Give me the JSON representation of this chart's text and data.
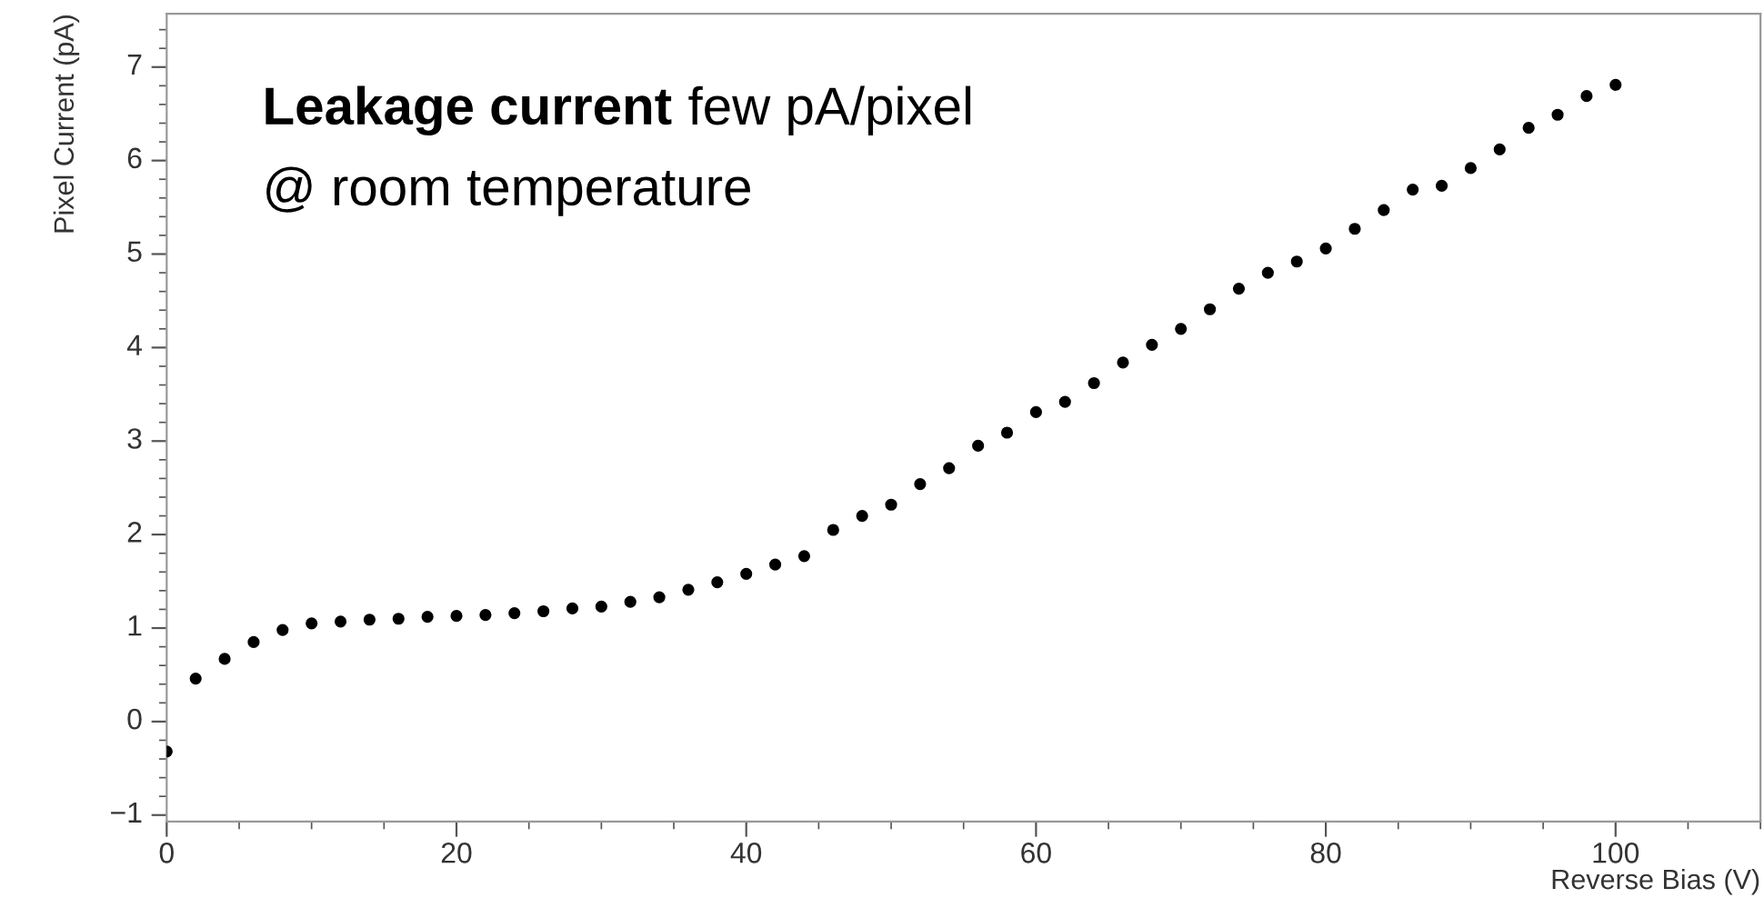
{
  "chart_data": {
    "type": "scatter",
    "xlabel": "Reverse Bias (V)",
    "ylabel": "Pixel Current (pA)",
    "annotations": [
      "Leakage current",
      "few pA/pixel",
      "@ room temperature"
    ],
    "x": [
      0,
      2,
      4,
      6,
      8,
      10,
      12,
      14,
      16,
      18,
      20,
      22,
      24,
      26,
      28,
      30,
      32,
      34,
      36,
      38,
      40,
      42,
      44,
      46,
      48,
      50,
      52,
      54,
      56,
      58,
      60,
      62,
      64,
      66,
      68,
      70,
      72,
      74,
      76,
      78,
      80,
      82,
      84,
      86,
      88,
      90,
      92,
      94,
      96,
      98,
      100
    ],
    "series": [
      {
        "color": "#000000",
        "values": [
          -0.32,
          0.46,
          0.67,
          0.85,
          0.98,
          1.05,
          1.07,
          1.09,
          1.1,
          1.12,
          1.13,
          1.14,
          1.16,
          1.18,
          1.21,
          1.23,
          1.28,
          1.33,
          1.41,
          1.49,
          1.58,
          1.68,
          1.77,
          2.05,
          2.2,
          2.32,
          2.54,
          2.71,
          2.95,
          3.09,
          3.31,
          3.42,
          3.62,
          3.84,
          4.03,
          4.2,
          4.41,
          4.63,
          4.8,
          4.92,
          5.06,
          5.27,
          5.47,
          5.69,
          5.73,
          5.92,
          6.12,
          6.35,
          6.49,
          6.69,
          6.81
        ]
      }
    ],
    "marker": "circle",
    "xlim": [
      0,
      110
    ],
    "ylim": [
      -1.07,
      7.57
    ],
    "xticks": [
      0,
      20,
      40,
      60,
      80,
      100
    ],
    "yticks": [
      {
        "value": -1,
        "label": "−1"
      },
      0,
      1,
      2,
      3,
      4,
      5,
      6,
      7
    ],
    "grid": false,
    "legend": false
  }
}
